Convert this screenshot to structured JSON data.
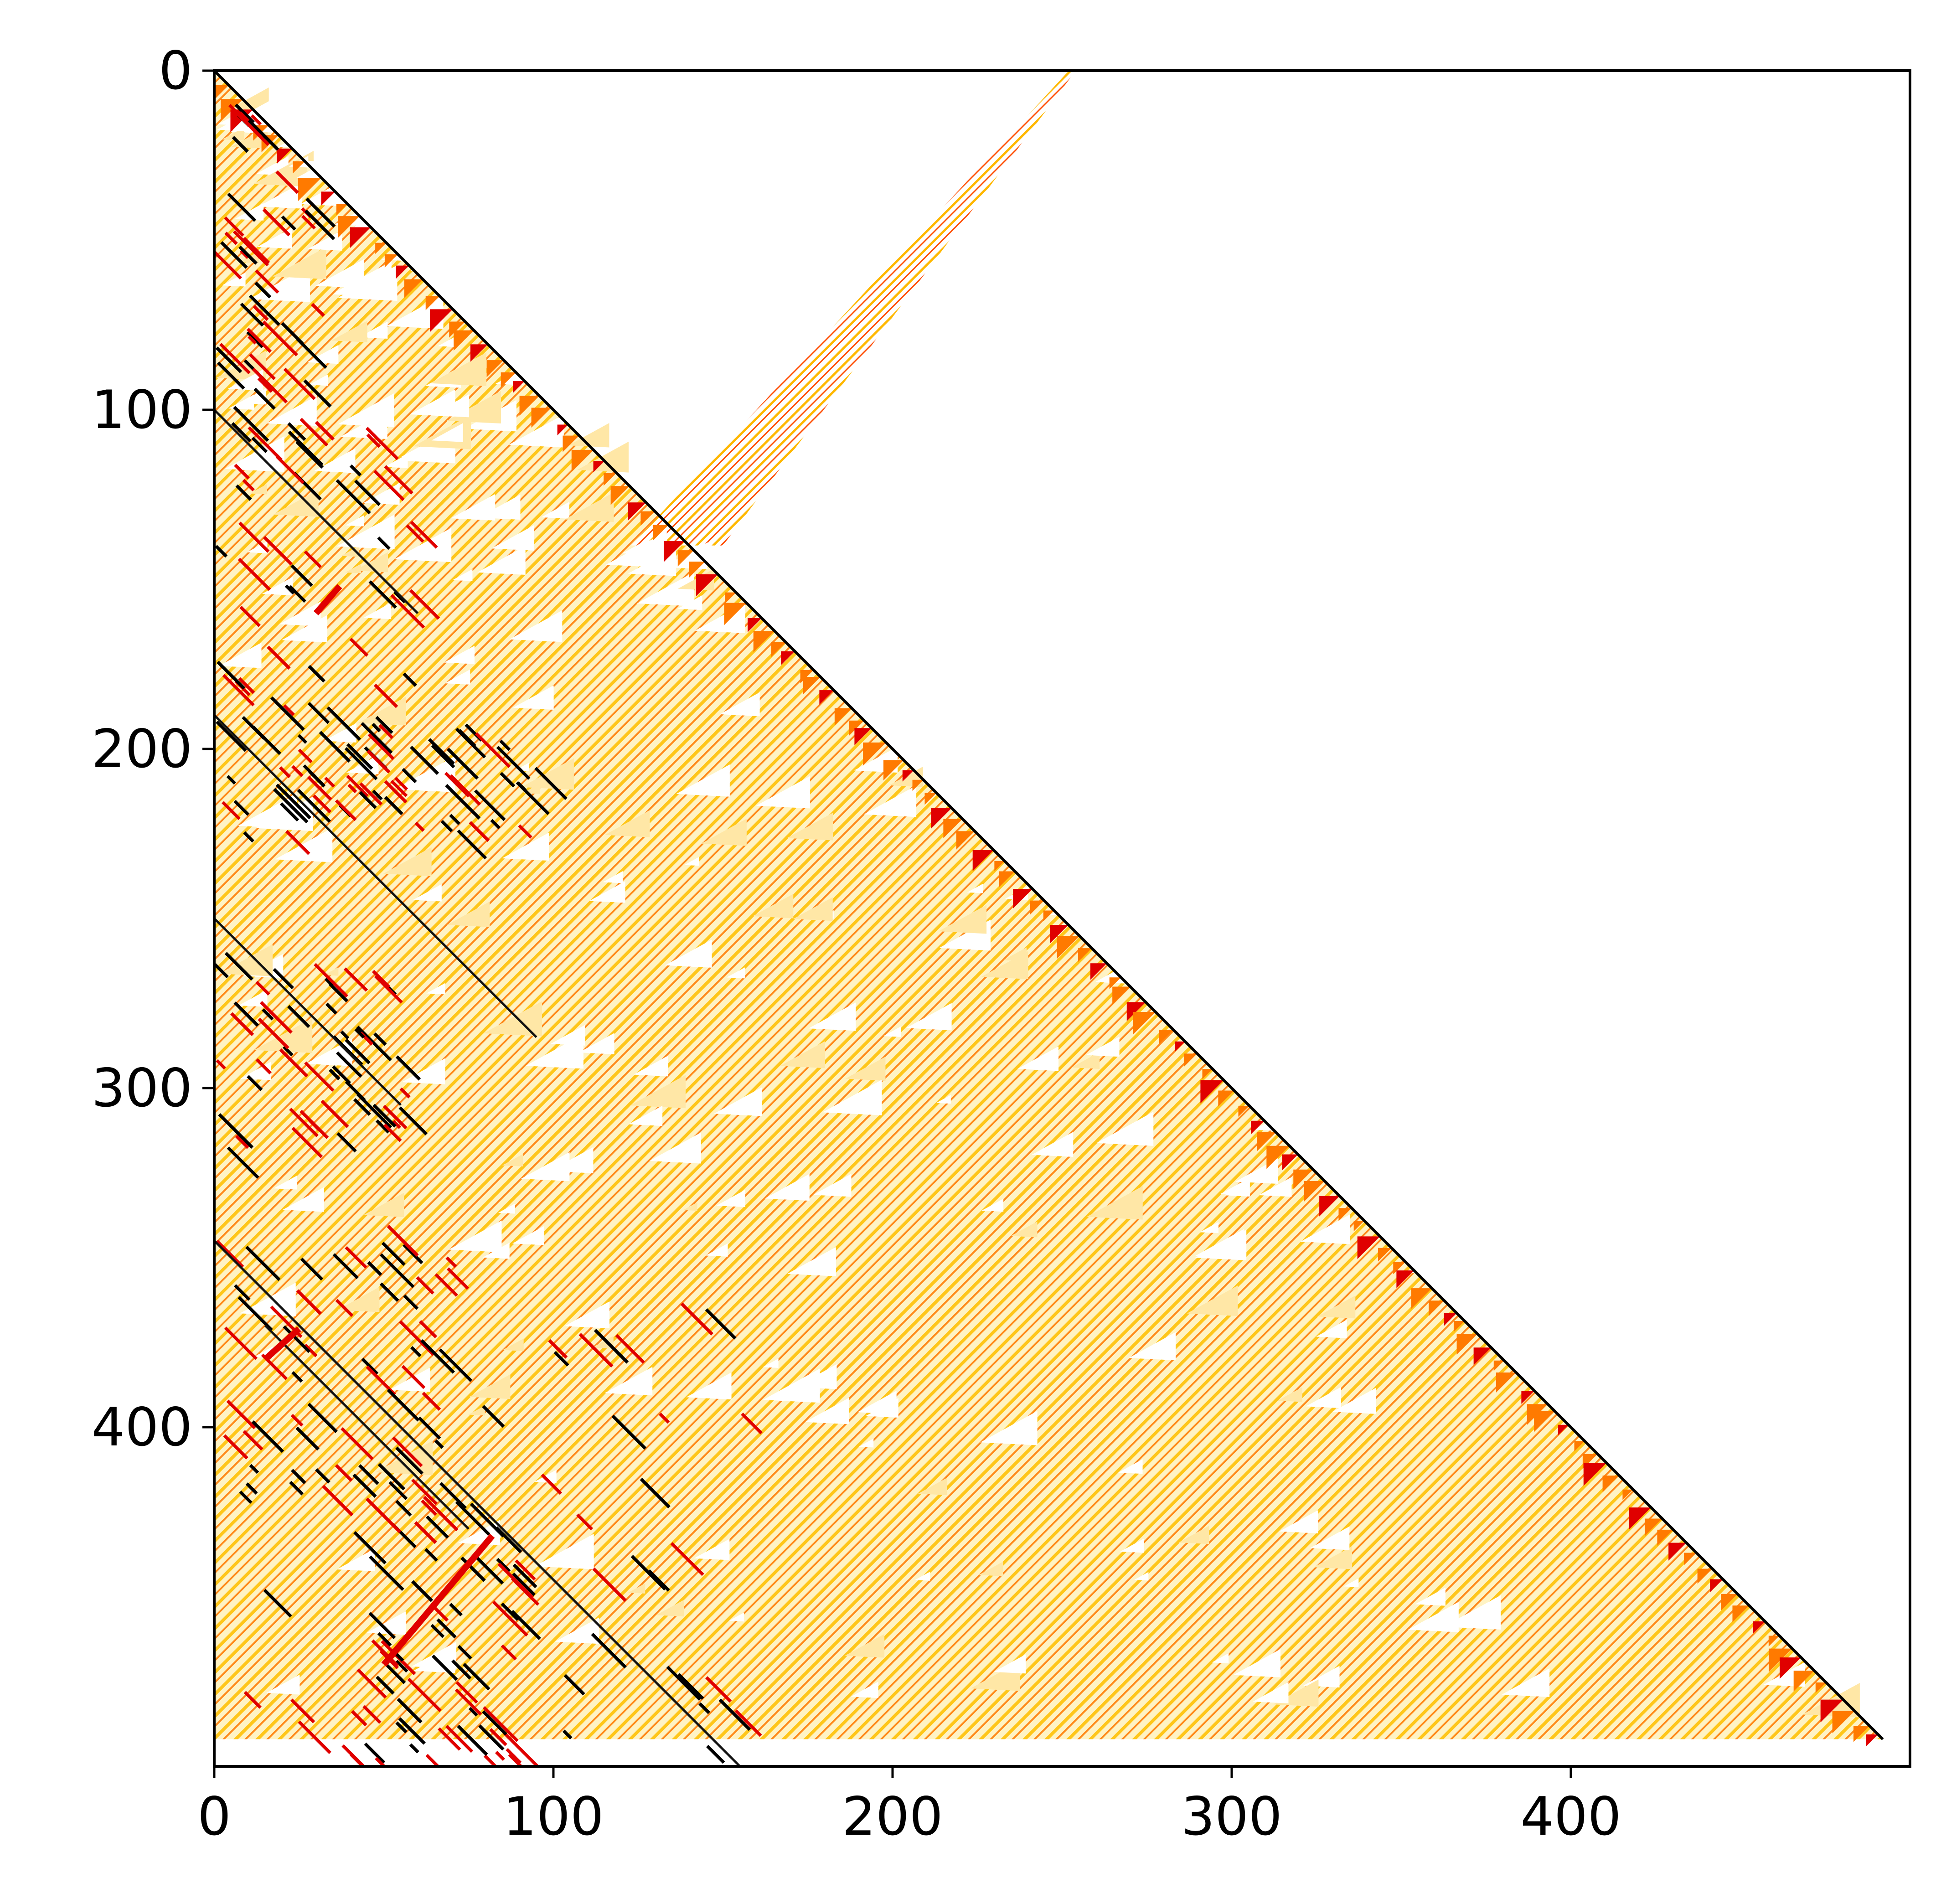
{
  "chart_data": {
    "type": "heatmap",
    "title": "",
    "xlabel": "",
    "ylabel": "",
    "xlim": [
      0,
      500
    ],
    "ylim": [
      500,
      0
    ],
    "x_ticks": [
      0,
      100,
      200,
      300,
      400
    ],
    "y_ticks": [
      0,
      100,
      200,
      300,
      400
    ],
    "x_tick_labels": [
      "0",
      "100",
      "200",
      "300",
      "400"
    ],
    "y_tick_labels": [
      "0",
      "100",
      "200",
      "300",
      "400"
    ],
    "colormap": [
      "#ffffff",
      "#ffd11a",
      "#ff7a00",
      "#e00000",
      "#000000"
    ],
    "grid": false,
    "legend": "none",
    "regions": [
      {
        "name": "main-triangle",
        "description": "filled region between x=0 and diagonal x=y",
        "x_range": [
          0,
          492
        ],
        "y_range": [
          0,
          492
        ]
      },
      {
        "name": "branch-stripe",
        "start": [
          252,
          0
        ],
        "end": [
          125,
          140
        ],
        "width": 25
      }
    ]
  }
}
